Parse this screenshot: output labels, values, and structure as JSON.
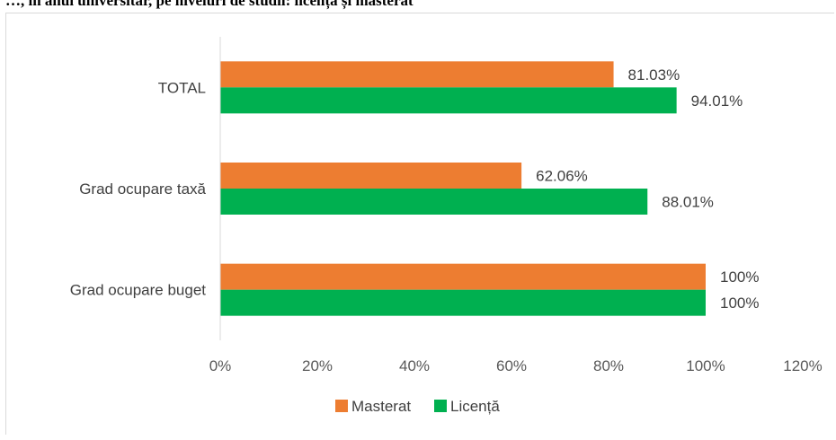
{
  "header_text": "…, în anul universitar, pe niveluri de studii: licență și masterat",
  "chart_data": {
    "type": "bar",
    "orientation": "horizontal",
    "categories": [
      "Grad ocupare buget",
      "Grad ocupare taxă",
      "TOTAL"
    ],
    "series": [
      {
        "name": "Masterat",
        "color": "#ED7D31",
        "values": [
          100,
          62.06,
          81.03
        ],
        "labels": [
          "100%",
          "62.06%",
          "81.03%"
        ]
      },
      {
        "name": "Licență",
        "color": "#00B050",
        "values": [
          100,
          88.01,
          94.01
        ],
        "labels": [
          "100%",
          "88.01%",
          "94.01%"
        ]
      }
    ],
    "xlim": [
      0,
      120
    ],
    "xticks": [
      "0%",
      "20%",
      "40%",
      "60%",
      "80%",
      "100%",
      "120%"
    ],
    "grid": false,
    "legend": "bottom"
  }
}
